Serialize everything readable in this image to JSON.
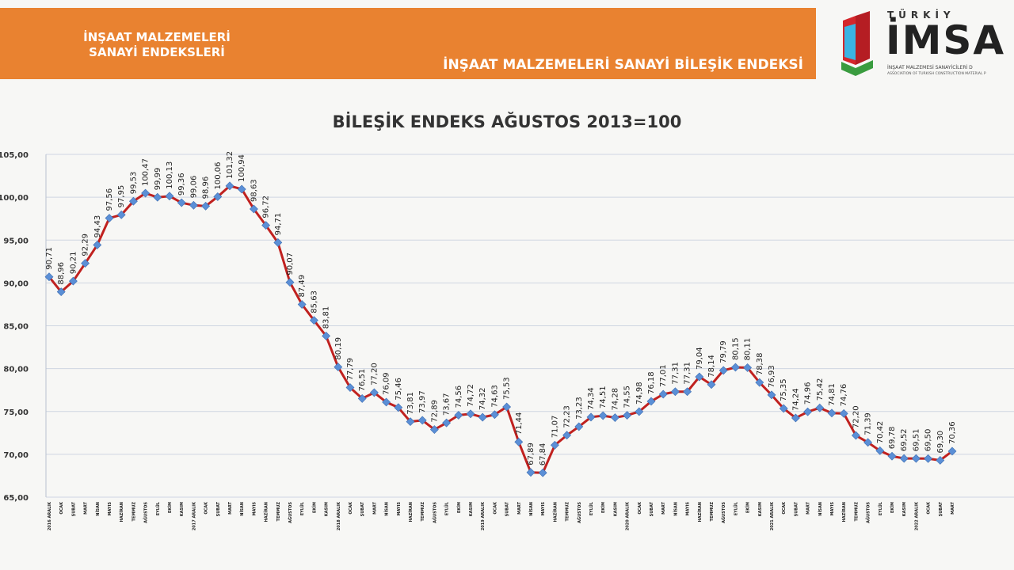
{
  "header": {
    "left_line1": "İNŞAAT MALZEMELERİ",
    "left_line2": "SANAYİ ENDEKSLERİ",
    "right_title": "İNŞAAT MALZEMELERİ SANAYİ BİLEŞİK ENDEKSİ"
  },
  "logo": {
    "top_text": "TÜRKİY",
    "name": "İMSA",
    "sub1": "İNŞAAT MALZEMESİ SANAYİCİLERİ D",
    "sub2": "ASSOCIATION OF TURKISH CONSTRUCTION MATERIAL P"
  },
  "colors": {
    "banner": "#e98230",
    "line": "#c0211f",
    "marker": "#5b8fd6",
    "grid": "#cfd6e2"
  },
  "chart_data": {
    "type": "line",
    "title": "BİLEŞİK ENDEKS AĞUSTOS 2013=100",
    "ylim": [
      65,
      105
    ],
    "yticks": [
      "65,00",
      "70,00",
      "75,00",
      "80,00",
      "85,00",
      "90,00",
      "95,00",
      "100,00",
      "105,00"
    ],
    "grid": true,
    "categories": [
      "2016 ARALIK",
      "OCAK",
      "ŞUBAT",
      "MART",
      "NİSAN",
      "MAYIS",
      "HAZİRAN",
      "TEMMUZ",
      "AĞUSTOS",
      "EYLÜL",
      "EKİM",
      "KASIM",
      "2017 ARALIK",
      "OCAK",
      "ŞUBAT",
      "MART",
      "NİSAN",
      "MAYIS",
      "HAZİRAN",
      "TEMMUZ",
      "AĞUSTOS",
      "EYLÜL",
      "EKİM",
      "KASIM",
      "2018 ARALIK",
      "OCAK",
      "ŞUBAT",
      "MART",
      "NİSAN",
      "MAYIS",
      "HAZİRAN",
      "TEMMUZ",
      "AĞUSTOS",
      "EYLÜL",
      "EKİM",
      "KASIM",
      "2019 ARALIK",
      "OCAK",
      "ŞUBAT",
      "MART",
      "NİSAN",
      "MAYIS",
      "HAZİRAN",
      "TEMMUZ",
      "AĞUSTOS",
      "EYLÜL",
      "EKİM",
      "KASIM",
      "2020 ARALIK",
      "OCAK",
      "ŞUBAT",
      "MART",
      "NİSAN",
      "MAYIS",
      "HAZİRAN",
      "TEMMUZ",
      "AĞUSTOS",
      "EYLÜL",
      "EKİM",
      "KASIM",
      "2021 ARALIK",
      "OCAK",
      "ŞUBAT",
      "MART",
      "NİSAN",
      "MAYIS",
      "HAZİRAN",
      "TEMMUZ",
      "AĞUSTOS",
      "EYLÜL",
      "EKİM",
      "KASIM",
      "2022 ARALIK",
      "OCAK",
      "ŞUBAT",
      "MART"
    ],
    "values": [
      90.71,
      88.96,
      90.21,
      92.29,
      94.43,
      97.56,
      97.95,
      99.53,
      100.47,
      99.99,
      100.13,
      99.36,
      99.06,
      98.96,
      100.06,
      101.32,
      100.94,
      98.63,
      96.72,
      94.71,
      90.07,
      87.49,
      85.63,
      83.81,
      80.19,
      77.79,
      76.51,
      77.2,
      76.09,
      75.46,
      73.81,
      73.97,
      72.89,
      73.67,
      74.56,
      74.72,
      74.32,
      74.63,
      75.53,
      71.44,
      67.89,
      67.84,
      71.07,
      72.23,
      73.23,
      74.34,
      74.51,
      74.28,
      74.55,
      74.98,
      76.18,
      77.01,
      77.31,
      77.31,
      79.04,
      78.14,
      79.79,
      80.15,
      80.11,
      78.38,
      76.93,
      75.35,
      74.24,
      74.96,
      75.42,
      74.81,
      74.76,
      72.2,
      71.39,
      70.42,
      69.78,
      69.52,
      69.51,
      69.5,
      69.3,
      70.36
    ],
    "labels": [
      "90,71",
      "88,96",
      "90,21",
      "92,29",
      "94,43",
      "97,56",
      "97,95",
      "99,53",
      "100,47",
      "99,99",
      "100,13",
      "99,36",
      "99,06",
      "98,96",
      "100,06",
      "101,32",
      "100,94",
      "98,63",
      "96,72",
      "94,71",
      "90,07",
      "87,49",
      "85,63",
      "83,81",
      "80,19",
      "77,79",
      "76,51",
      "77,20",
      "76,09",
      "75,46",
      "73,81",
      "73,97",
      "72,89",
      "73,67",
      "74,56",
      "74,72",
      "74,32",
      "74,63",
      "75,53",
      "71,44",
      "67,89",
      "67,84",
      "71,07",
      "72,23",
      "73,23",
      "74,34",
      "74,51",
      "74,28",
      "74,55",
      "74,98",
      "76,18",
      "77,01",
      "77,31",
      "77,31",
      "79,04",
      "78,14",
      "79,79",
      "80,15",
      "80,11",
      "78,38",
      "76,93",
      "75,35",
      "74,24",
      "74,96",
      "75,42",
      "74,81",
      "74,76",
      "72,20",
      "71,39",
      "70,42",
      "69,78",
      "69,52",
      "69,51",
      "69,50",
      "69,30",
      "70,36"
    ]
  }
}
